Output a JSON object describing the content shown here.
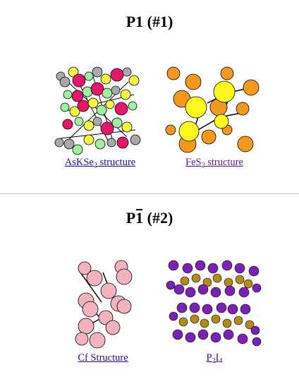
{
  "sections": [
    {
      "heading": {
        "prefix": "P",
        "bar": "1",
        "suffix": " (#1)",
        "overline": false
      },
      "items": [
        {
          "label_main": "AsKSe",
          "label_sub": "2",
          "label_tail": " structure",
          "visited": false
        },
        {
          "label_main": "FeS",
          "label_sub": "2",
          "label_tail": " structure",
          "visited": true
        }
      ]
    },
    {
      "heading": {
        "prefix": "P",
        "bar": "1",
        "suffix": " (#2)",
        "overline": true
      },
      "items": [
        {
          "label_main": "Cf Structure",
          "label_sub": "",
          "label_tail": "",
          "visited": false
        },
        {
          "label_main": "P",
          "label_sub": "2",
          "label_tail": "I",
          "label_sub2": "4",
          "visited": false
        }
      ]
    }
  ],
  "colors": {
    "link": "#1a0dab",
    "visited_link": "#551a8b",
    "as": "#f5f542",
    "k": "#e8166a",
    "se": "#9ef09e",
    "gray": "#a9a9a9",
    "fe": "#f6981c",
    "s": "#fff81e",
    "cf": "#f2b3bf",
    "p_atom": "#b48a1a",
    "i_atom": "#7a22b5"
  },
  "icons": [
    "askse2-structure-image",
    "fes2-structure-image",
    "cf-structure-image",
    "p2i4-structure-image"
  ]
}
